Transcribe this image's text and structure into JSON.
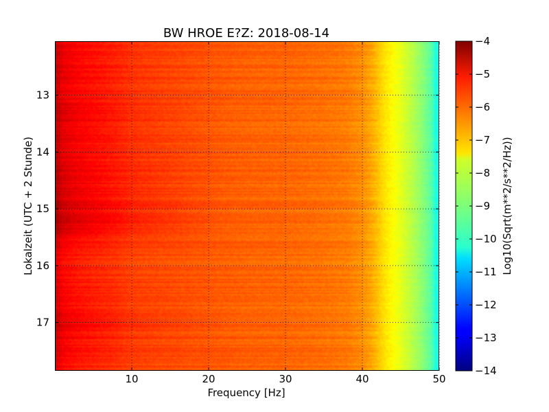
{
  "chart_data": {
    "type": "heatmap",
    "title": "BW HROE E?Z: 2018-08-14",
    "xlabel": "Frequency [Hz]",
    "ylabel": "Lokalzeit (UTC + 2 Stunde)",
    "xlim": [
      0,
      50
    ],
    "ylim": [
      17.85,
      12.05
    ],
    "x_axis_direction": "increasing-right",
    "y_axis_direction": "increasing-down",
    "grid": true,
    "x_ticks": [
      10,
      20,
      30,
      40,
      50
    ],
    "x_tick_labels": [
      "10",
      "20",
      "30",
      "40",
      "50"
    ],
    "y_ticks": [
      13,
      14,
      15,
      16,
      17
    ],
    "y_tick_labels": [
      "13",
      "14",
      "15",
      "16",
      "17"
    ],
    "colormap": "jet",
    "colorbar": {
      "label": "Log10(Sqrt(m**2/s**2/Hz))",
      "range": [
        -14,
        -4
      ],
      "ticks": [
        -4,
        -5,
        -6,
        -7,
        -8,
        -9,
        -10,
        -11,
        -12,
        -13,
        -14
      ],
      "tick_labels": [
        "−4",
        "−5",
        "−6",
        "−7",
        "−8",
        "−9",
        "−10",
        "−11",
        "−12",
        "−13",
        "−14"
      ]
    },
    "spectrum_profile": {
      "frequency_hz": [
        0,
        0.5,
        1,
        2,
        3,
        5,
        8,
        10,
        15,
        20,
        25,
        30,
        35,
        38,
        40,
        41,
        42,
        43,
        44,
        45,
        46,
        47,
        48,
        49,
        49.5,
        50
      ],
      "log10_amplitude": [
        -4.9,
        -5.1,
        -5.3,
        -5.4,
        -5.5,
        -5.6,
        -5.75,
        -5.9,
        -6.0,
        -6.1,
        -6.2,
        -6.25,
        -6.35,
        -6.45,
        -6.65,
        -6.85,
        -7.15,
        -7.5,
        -7.75,
        -8.0,
        -8.3,
        -8.6,
        -8.95,
        -9.4,
        -9.9,
        -10.2
      ]
    },
    "time_bands": {
      "time_hours": [
        12.2,
        12.6,
        13.1,
        13.2,
        13.5,
        14.0,
        14.3,
        14.6,
        14.9,
        15.2,
        15.4,
        15.6,
        16.0,
        16.6,
        17.0,
        17.4,
        17.8
      ],
      "low_frequency_offset": [
        0.2,
        0.3,
        0.2,
        0.45,
        0.4,
        0.3,
        0.4,
        0.45,
        0.5,
        0.6,
        0.5,
        0.1,
        0.0,
        0.1,
        0.3,
        0.1,
        0.0
      ]
    }
  }
}
